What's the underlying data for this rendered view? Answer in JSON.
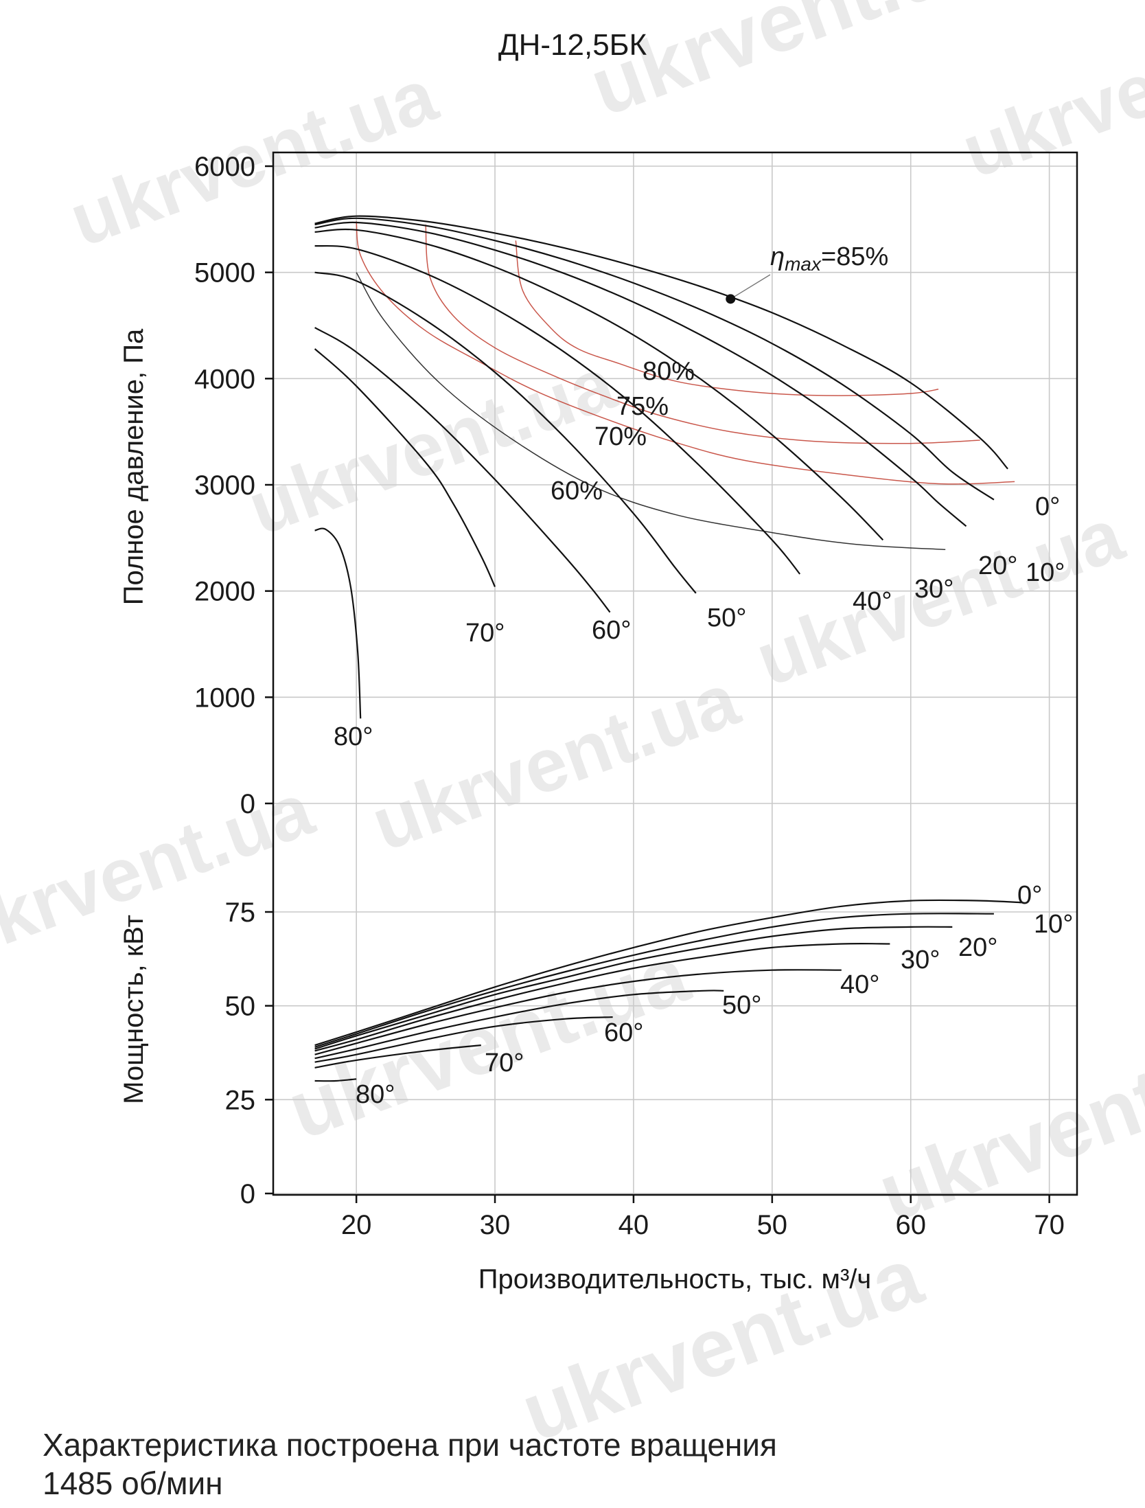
{
  "title": "ДН-12,5БК",
  "footer": {
    "line1": "Характеристика построена при частоте вращения",
    "line2": "1485 об/мин"
  },
  "watermark_text": "ukrvent.ua",
  "colors": {
    "curve": "#111111",
    "efficiency": "#c0392b",
    "grid": "#c9c9c9"
  },
  "chart_data": [
    {
      "type": "line",
      "xlabel": "Производительность, тыс. м³/ч",
      "ylabel": "Полное давление, Па",
      "xlim": [
        14,
        72
      ],
      "ylim": [
        0,
        6000
      ],
      "x_ticks": [
        20,
        30,
        40,
        50,
        60,
        70
      ],
      "y_ticks": [
        0,
        1000,
        2000,
        3000,
        4000,
        5000,
        6000
      ],
      "grid": true,
      "series": [
        {
          "name": "0°",
          "points": [
            [
              17,
              5460
            ],
            [
              20,
              5530
            ],
            [
              25,
              5480
            ],
            [
              30,
              5370
            ],
            [
              35,
              5230
            ],
            [
              40,
              5060
            ],
            [
              45,
              4860
            ],
            [
              50,
              4620
            ],
            [
              55,
              4320
            ],
            [
              60,
              3960
            ],
            [
              65,
              3440
            ],
            [
              67,
              3150
            ]
          ]
        },
        {
          "name": "10°",
          "points": [
            [
              17,
              5450
            ],
            [
              20,
              5510
            ],
            [
              25,
              5440
            ],
            [
              30,
              5300
            ],
            [
              35,
              5120
            ],
            [
              40,
              4900
            ],
            [
              45,
              4640
            ],
            [
              50,
              4330
            ],
            [
              55,
              3950
            ],
            [
              60,
              3480
            ],
            [
              63,
              3120
            ],
            [
              66,
              2860
            ]
          ]
        },
        {
          "name": "20°",
          "points": [
            [
              17,
              5420
            ],
            [
              20,
              5470
            ],
            [
              25,
              5380
            ],
            [
              30,
              5210
            ],
            [
              35,
              4990
            ],
            [
              40,
              4720
            ],
            [
              45,
              4400
            ],
            [
              50,
              4030
            ],
            [
              55,
              3590
            ],
            [
              60,
              3070
            ],
            [
              62,
              2830
            ],
            [
              64,
              2610
            ]
          ]
        },
        {
          "name": "30°",
          "points": [
            [
              17,
              5380
            ],
            [
              20,
              5400
            ],
            [
              25,
              5270
            ],
            [
              30,
              5050
            ],
            [
              35,
              4760
            ],
            [
              40,
              4410
            ],
            [
              45,
              3980
            ],
            [
              50,
              3470
            ],
            [
              55,
              2880
            ],
            [
              58,
              2480
            ]
          ]
        },
        {
          "name": "40°",
          "points": [
            [
              17,
              5250
            ],
            [
              20,
              5220
            ],
            [
              25,
              4990
            ],
            [
              30,
              4660
            ],
            [
              35,
              4250
            ],
            [
              40,
              3750
            ],
            [
              45,
              3150
            ],
            [
              50,
              2480
            ],
            [
              52,
              2160
            ]
          ]
        },
        {
          "name": "50°",
          "points": [
            [
              17,
              5000
            ],
            [
              20,
              4920
            ],
            [
              25,
              4550
            ],
            [
              30,
              4060
            ],
            [
              35,
              3450
            ],
            [
              40,
              2730
            ],
            [
              43,
              2220
            ],
            [
              44.5,
              1980
            ]
          ]
        },
        {
          "name": "60°",
          "points": [
            [
              17,
              4480
            ],
            [
              20,
              4250
            ],
            [
              25,
              3700
            ],
            [
              30,
              3050
            ],
            [
              35,
              2330
            ],
            [
              37,
              2020
            ],
            [
              38.3,
              1800
            ]
          ]
        },
        {
          "name": "70°",
          "points": [
            [
              17,
              4280
            ],
            [
              20,
              3930
            ],
            [
              25,
              3210
            ],
            [
              27,
              2820
            ],
            [
              29,
              2330
            ],
            [
              30,
              2040
            ]
          ]
        },
        {
          "name": "80°",
          "points": [
            [
              17,
              2570
            ],
            [
              17.8,
              2580
            ],
            [
              18.8,
              2420
            ],
            [
              19.6,
              2030
            ],
            [
              20.1,
              1420
            ],
            [
              20.3,
              800
            ]
          ]
        }
      ],
      "efficiency_curves": [
        {
          "name": "80%",
          "points": [
            [
              31.5,
              5300
            ],
            [
              32,
              4830
            ],
            [
              34,
              4480
            ],
            [
              36,
              4280
            ],
            [
              39,
              4140
            ],
            [
              42,
              4010
            ],
            [
              45,
              3930
            ],
            [
              50,
              3860
            ],
            [
              55,
              3840
            ],
            [
              60,
              3860
            ],
            [
              62,
              3900
            ]
          ]
        },
        {
          "name": "75%",
          "points": [
            [
              25,
              5450
            ],
            [
              25.3,
              4960
            ],
            [
              27,
              4590
            ],
            [
              30,
              4290
            ],
            [
              34,
              4040
            ],
            [
              38,
              3830
            ],
            [
              42,
              3650
            ],
            [
              47,
              3500
            ],
            [
              53,
              3410
            ],
            [
              60,
              3390
            ],
            [
              65,
              3420
            ]
          ]
        },
        {
          "name": "70%",
          "points": [
            [
              20,
              5480
            ],
            [
              20.3,
              5160
            ],
            [
              22,
              4800
            ],
            [
              25,
              4450
            ],
            [
              29,
              4150
            ],
            [
              33,
              3880
            ],
            [
              38,
              3620
            ],
            [
              43,
              3400
            ],
            [
              48,
              3230
            ],
            [
              55,
              3100
            ],
            [
              62,
              3010
            ],
            [
              67.5,
              3030
            ]
          ]
        },
        {
          "name": "60%",
          "points": [
            [
              20,
              5000
            ],
            [
              22,
              4550
            ],
            [
              26,
              3960
            ],
            [
              31,
              3450
            ],
            [
              37,
              2990
            ],
            [
              43,
              2720
            ],
            [
              50,
              2550
            ],
            [
              56,
              2440
            ],
            [
              62.5,
              2390
            ]
          ]
        }
      ],
      "annotations": [
        {
          "text_prefix": "η",
          "text_sub": "max",
          "text_suffix": "=85%",
          "point": [
            47,
            4750
          ]
        }
      ]
    },
    {
      "type": "line",
      "xlabel": "Производительность, тыс. м³/ч",
      "ylabel": "Мощность, кВт",
      "xlim": [
        14,
        72
      ],
      "ylim": [
        0,
        75
      ],
      "y_ticks": [
        0,
        25,
        50,
        75
      ],
      "grid": true,
      "series": [
        {
          "name": "0°",
          "points": [
            [
              17,
              39.5
            ],
            [
              20,
              43
            ],
            [
              25,
              49
            ],
            [
              30,
              55
            ],
            [
              35,
              60.5
            ],
            [
              40,
              65.5
            ],
            [
              45,
              70
            ],
            [
              50,
              73.5
            ],
            [
              55,
              76.5
            ],
            [
              60,
              78
            ],
            [
              65,
              78
            ],
            [
              68,
              77.5
            ]
          ]
        },
        {
          "name": "10°",
          "points": [
            [
              17,
              39
            ],
            [
              20,
              42.5
            ],
            [
              25,
              48.5
            ],
            [
              30,
              54
            ],
            [
              35,
              59
            ],
            [
              40,
              63.5
            ],
            [
              45,
              67.5
            ],
            [
              50,
              71
            ],
            [
              55,
              73.5
            ],
            [
              60,
              74.5
            ],
            [
              66,
              74.5
            ]
          ]
        },
        {
          "name": "20°",
          "points": [
            [
              17,
              38.5
            ],
            [
              20,
              42
            ],
            [
              25,
              47.5
            ],
            [
              30,
              53
            ],
            [
              35,
              57.5
            ],
            [
              40,
              62
            ],
            [
              45,
              65.5
            ],
            [
              50,
              68.5
            ],
            [
              55,
              70.5
            ],
            [
              60,
              71
            ],
            [
              63,
              71
            ]
          ]
        },
        {
          "name": "30°",
          "points": [
            [
              17,
              38
            ],
            [
              20,
              41
            ],
            [
              25,
              46.5
            ],
            [
              30,
              51.5
            ],
            [
              35,
              56
            ],
            [
              40,
              60
            ],
            [
              45,
              63
            ],
            [
              50,
              65.5
            ],
            [
              55,
              66.5
            ],
            [
              58.5,
              66.5
            ]
          ]
        },
        {
          "name": "40°",
          "points": [
            [
              17,
              37
            ],
            [
              20,
              40
            ],
            [
              25,
              45
            ],
            [
              30,
              49.5
            ],
            [
              35,
              53.5
            ],
            [
              40,
              56.5
            ],
            [
              45,
              58.5
            ],
            [
              50,
              59.5
            ],
            [
              55,
              59.5
            ]
          ]
        },
        {
          "name": "50°",
          "points": [
            [
              17,
              36
            ],
            [
              20,
              38.5
            ],
            [
              25,
              43
            ],
            [
              30,
              47
            ],
            [
              35,
              50.5
            ],
            [
              40,
              53
            ],
            [
              45,
              54
            ],
            [
              46.5,
              54
            ]
          ]
        },
        {
          "name": "60°",
          "points": [
            [
              17,
              35
            ],
            [
              20,
              37
            ],
            [
              25,
              41
            ],
            [
              30,
              44.5
            ],
            [
              35,
              46.5
            ],
            [
              38.5,
              47
            ]
          ]
        },
        {
          "name": "70°",
          "points": [
            [
              17,
              33.5
            ],
            [
              20,
              35.5
            ],
            [
              25,
              38
            ],
            [
              29,
              39.5
            ]
          ]
        },
        {
          "name": "80°",
          "points": [
            [
              17,
              30
            ],
            [
              18.5,
              30
            ],
            [
              20,
              30.5
            ]
          ]
        }
      ]
    }
  ]
}
